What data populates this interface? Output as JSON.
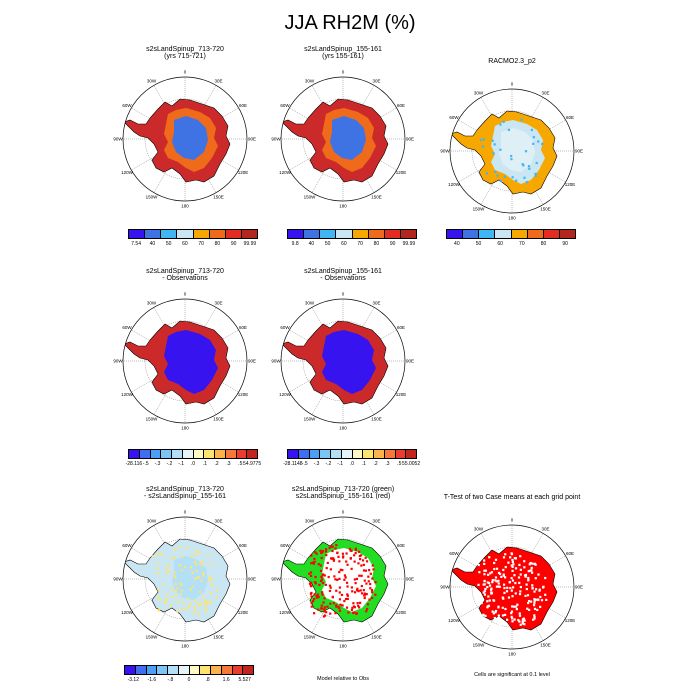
{
  "title": "JJA RH2M (%)",
  "colors": {
    "darkred": "#cc2a2a",
    "orange": "#f6a800",
    "lightblue": "#c9e6f2",
    "blue_mid": "#3f73e3",
    "deep_blue": "#3713f0",
    "green": "#22dd22",
    "red": "#ff0000",
    "white": "#ffffff"
  },
  "panels": [
    {
      "id": "p1",
      "title_lines": [
        "s2sLandSpinup_713-720",
        "(yrs 715-721)"
      ]
    },
    {
      "id": "p2",
      "title_lines": [
        "s2sLandSpinup_155-161",
        "(yrs 155-161)"
      ]
    },
    {
      "id": "p3",
      "title_lines": [
        "RACMO2.3_p2",
        ""
      ]
    },
    {
      "id": "p4",
      "title_lines": [
        "s2sLandSpinup_713-720",
        "- Observations"
      ]
    },
    {
      "id": "p5",
      "title_lines": [
        "s2sLandSpinup_155-161",
        "- Observations"
      ]
    },
    {
      "id": "p7",
      "title_lines": [
        "s2sLandSpinup_713-720",
        "- s2sLandSpinup_155-161"
      ]
    },
    {
      "id": "p8",
      "title_lines": [
        "s2sLandSpinup_713-720 (green)",
        "s2sLandSpinup_155-161 (red)"
      ]
    },
    {
      "id": "p9",
      "title_lines": [
        "T-Test of two Case means at each grid point",
        ""
      ]
    }
  ],
  "lon_labels": [
    "0",
    "30E",
    "60E",
    "90E",
    "120E",
    "150E",
    "180",
    "150W",
    "120W",
    "90W",
    "60W",
    "30W"
  ],
  "colorbars": {
    "cb1": {
      "colors": [
        "#3713f0",
        "#3f73e3",
        "#40b6f5",
        "#c9e6f2",
        "#f6a800",
        "#f06a1c",
        "#e22b22",
        "#b3261e"
      ],
      "labels": [
        "7.54",
        "40",
        "50",
        "60",
        "70",
        "80",
        "90",
        "99.99"
      ]
    },
    "cb2": {
      "colors": [
        "#3713f0",
        "#3f73e3",
        "#40b6f5",
        "#c9e6f2",
        "#f6a800",
        "#f06a1c",
        "#e22b22",
        "#b3261e"
      ],
      "labels": [
        "9.8",
        "40",
        "50",
        "60",
        "70",
        "80",
        "90",
        "99.99"
      ]
    },
    "cb3": {
      "colors": [
        "#3713f0",
        "#3f73e3",
        "#40b6f5",
        "#c9e6f2",
        "#f6a800",
        "#f06a1c",
        "#e22b22",
        "#b3261e"
      ],
      "labels": [
        "40",
        "50",
        "60",
        "70",
        "80",
        "90"
      ]
    },
    "cb4": {
      "colors": [
        "#3713f0",
        "#3f6ff0",
        "#4aa0f5",
        "#7cc6f5",
        "#b3e0f7",
        "#e6f4f7",
        "#fff9c4",
        "#fde36f",
        "#fbb34a",
        "#f8783a",
        "#ec3b2f",
        "#c3241f"
      ],
      "labels": [
        "-28.116",
        "-.5",
        "-.3",
        "-.2",
        "-.1",
        ".0",
        ".1",
        ".2",
        ".3",
        ".5",
        "54.9775"
      ]
    },
    "cb5": {
      "colors": [
        "#3713f0",
        "#3f6ff0",
        "#4aa0f5",
        "#7cc6f5",
        "#b3e0f7",
        "#e6f4f7",
        "#fff9c4",
        "#fde36f",
        "#fbb34a",
        "#f8783a",
        "#ec3b2f",
        "#c3241f"
      ],
      "labels": [
        "-28.1148",
        "-.5",
        "-.3",
        "-.2",
        "-.1",
        ".0",
        ".1",
        ".2",
        ".3",
        ".5",
        "55.0052"
      ]
    },
    "cb7": {
      "colors": [
        "#3713f0",
        "#3f6ff0",
        "#4aa0f5",
        "#7cc6f5",
        "#b3e0f7",
        "#e6f4f7",
        "#fff9c4",
        "#fde36f",
        "#fbb34a",
        "#f8783a",
        "#ec3b2f",
        "#c3241f"
      ],
      "labels": [
        "-3.12",
        "-1.6",
        "-.8",
        "0",
        ".8",
        "1.6",
        "5.527"
      ]
    }
  },
  "captions": {
    "model_relative": "Model relative to Obs",
    "significance": "Cells are significant at 0.1 level"
  }
}
